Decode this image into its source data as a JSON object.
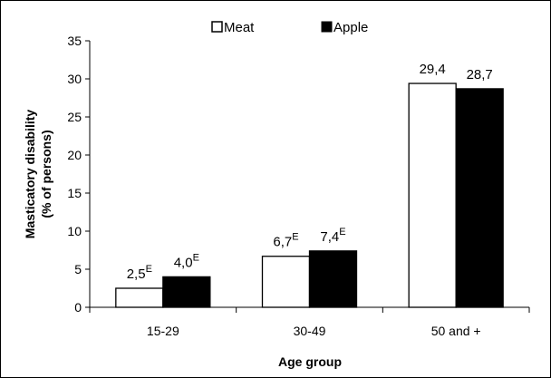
{
  "chart_data": {
    "type": "bar",
    "categories": [
      "15-29",
      "30-49",
      "50 and +"
    ],
    "series": [
      {
        "name": "Meat",
        "values": [
          2.5,
          6.7,
          29.4
        ],
        "labels": [
          "2,5",
          "6,7",
          "29,4"
        ],
        "superscripts": [
          "E",
          "E",
          ""
        ],
        "color": "#ffffff"
      },
      {
        "name": "Apple",
        "values": [
          4.0,
          7.4,
          28.7
        ],
        "labels": [
          "4,0",
          "7,4",
          "28,7"
        ],
        "superscripts": [
          "E",
          "E",
          ""
        ],
        "color": "#000000"
      }
    ],
    "xlabel": "Age group",
    "ylabel": [
      "Masticatory disability",
      "(% of persons)"
    ],
    "ylim": [
      0,
      35
    ],
    "yticks": [
      0,
      5,
      10,
      15,
      20,
      25,
      30,
      35
    ],
    "legend_position": "top-center",
    "grid": false
  }
}
